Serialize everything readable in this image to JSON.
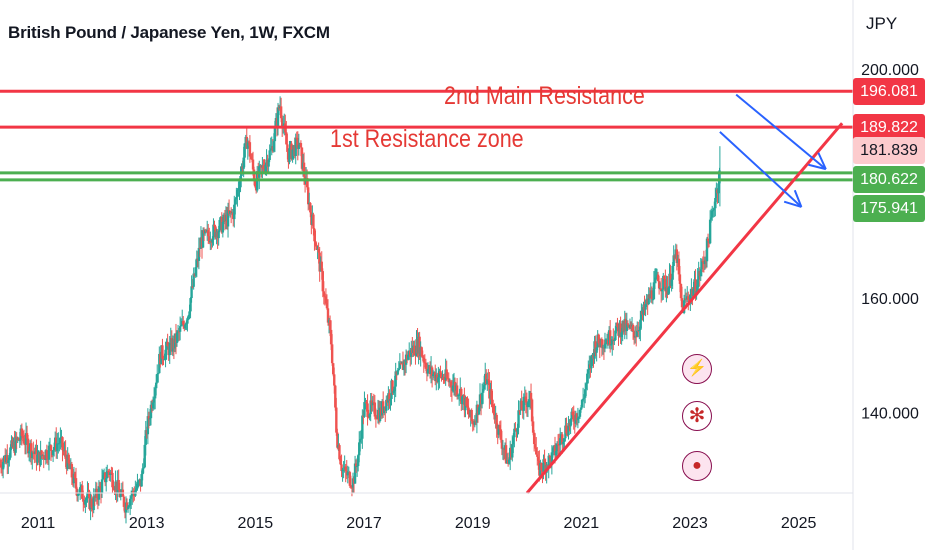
{
  "header": {
    "title": "British Pound / Japanese Yen, 1W, FXCM",
    "currency": "JPY"
  },
  "annotations": {
    "main_resistance": "2nd Main Resistance",
    "first_resistance": "1st Resistance zone"
  },
  "price_badges": [
    {
      "label": "196.081",
      "value": 196.081,
      "bg": "#f23645",
      "fg": "#ffffff"
    },
    {
      "label": "189.822",
      "value": 189.822,
      "bg": "#f23645",
      "fg": "#ffffff"
    },
    {
      "label": "181.839",
      "value": 181.839,
      "bg": "#fccbcd",
      "fg": "#131722"
    },
    {
      "label": "180.622",
      "value": 180.622,
      "bg": "#4caf50",
      "fg": "#ffffff"
    },
    {
      "label": "175.941",
      "value": 175.941,
      "bg": "#4caf50",
      "fg": "#ffffff"
    }
  ],
  "icons": [
    {
      "name": "lightning-icon",
      "glyph": "⚡"
    },
    {
      "name": "uk-flag-icon",
      "glyph": "✻"
    },
    {
      "name": "record-icon",
      "glyph": "●"
    }
  ],
  "chart_data": {
    "type": "candlestick",
    "symbol": "British Pound / Japanese Yen",
    "interval": "1W",
    "source": "FXCM",
    "x_ticks": [
      "2011",
      "2013",
      "2015",
      "2017",
      "2019",
      "2021",
      "2023",
      "2025"
    ],
    "y_ticks": [
      "200.000",
      "160.000",
      "140.000"
    ],
    "ylim": [
      126,
      212
    ],
    "xlim": [
      2010.3,
      2026.0
    ],
    "close_path": [
      [
        2010.3,
        131
      ],
      [
        2010.7,
        136
      ],
      [
        2011.0,
        132
      ],
      [
        2011.4,
        135
      ],
      [
        2011.7,
        127
      ],
      [
        2012.0,
        124
      ],
      [
        2012.3,
        130
      ],
      [
        2012.6,
        124
      ],
      [
        2012.9,
        128
      ],
      [
        2013.0,
        137
      ],
      [
        2013.25,
        150
      ],
      [
        2013.5,
        152
      ],
      [
        2013.75,
        157
      ],
      [
        2014.0,
        170
      ],
      [
        2014.3,
        172
      ],
      [
        2014.6,
        175
      ],
      [
        2014.85,
        188
      ],
      [
        2015.0,
        180
      ],
      [
        2015.3,
        186
      ],
      [
        2015.45,
        194
      ],
      [
        2015.6,
        185
      ],
      [
        2015.8,
        187
      ],
      [
        2016.0,
        176
      ],
      [
        2016.2,
        165
      ],
      [
        2016.4,
        152
      ],
      [
        2016.5,
        136
      ],
      [
        2016.6,
        130
      ],
      [
        2016.8,
        128
      ],
      [
        2016.9,
        133
      ],
      [
        2017.0,
        141
      ],
      [
        2017.3,
        140
      ],
      [
        2017.6,
        146
      ],
      [
        2017.8,
        150
      ],
      [
        2018.0,
        152
      ],
      [
        2018.2,
        147
      ],
      [
        2018.5,
        146
      ],
      [
        2018.75,
        144
      ],
      [
        2019.0,
        138
      ],
      [
        2019.25,
        146
      ],
      [
        2019.45,
        138
      ],
      [
        2019.65,
        131
      ],
      [
        2019.85,
        140
      ],
      [
        2020.05,
        143
      ],
      [
        2020.2,
        130
      ],
      [
        2020.45,
        132
      ],
      [
        2020.7,
        137
      ],
      [
        2021.0,
        141
      ],
      [
        2021.25,
        152
      ],
      [
        2021.5,
        153
      ],
      [
        2021.75,
        155
      ],
      [
        2022.0,
        154
      ],
      [
        2022.25,
        160
      ],
      [
        2022.4,
        163
      ],
      [
        2022.6,
        162
      ],
      [
        2022.75,
        168
      ],
      [
        2022.85,
        158
      ],
      [
        2022.95,
        160
      ],
      [
        2023.1,
        162
      ],
      [
        2023.3,
        168
      ],
      [
        2023.45,
        177
      ],
      [
        2023.55,
        182
      ]
    ],
    "horizontal_levels": [
      {
        "label": "2nd Main Resistance",
        "value": 196.081,
        "color": "#f23645"
      },
      {
        "label": "1st Resistance zone",
        "value": 189.822,
        "color": "#f23645"
      },
      {
        "value": 181.839,
        "color": "#4caf50"
      },
      {
        "value": 180.622,
        "color": "#4caf50"
      }
    ],
    "trendline": {
      "from": [
        2020.0,
        126
      ],
      "to": [
        2025.8,
        190.5
      ],
      "color": "#f23645"
    },
    "arrows": [
      {
        "from": [
          2023.85,
          195.5
        ],
        "to": [
          2025.5,
          182.5
        ],
        "color": "#2962ff"
      },
      {
        "from": [
          2023.55,
          189.0
        ],
        "to": [
          2025.05,
          175.9
        ],
        "color": "#2962ff"
      }
    ],
    "grid": false,
    "legend": "none"
  }
}
